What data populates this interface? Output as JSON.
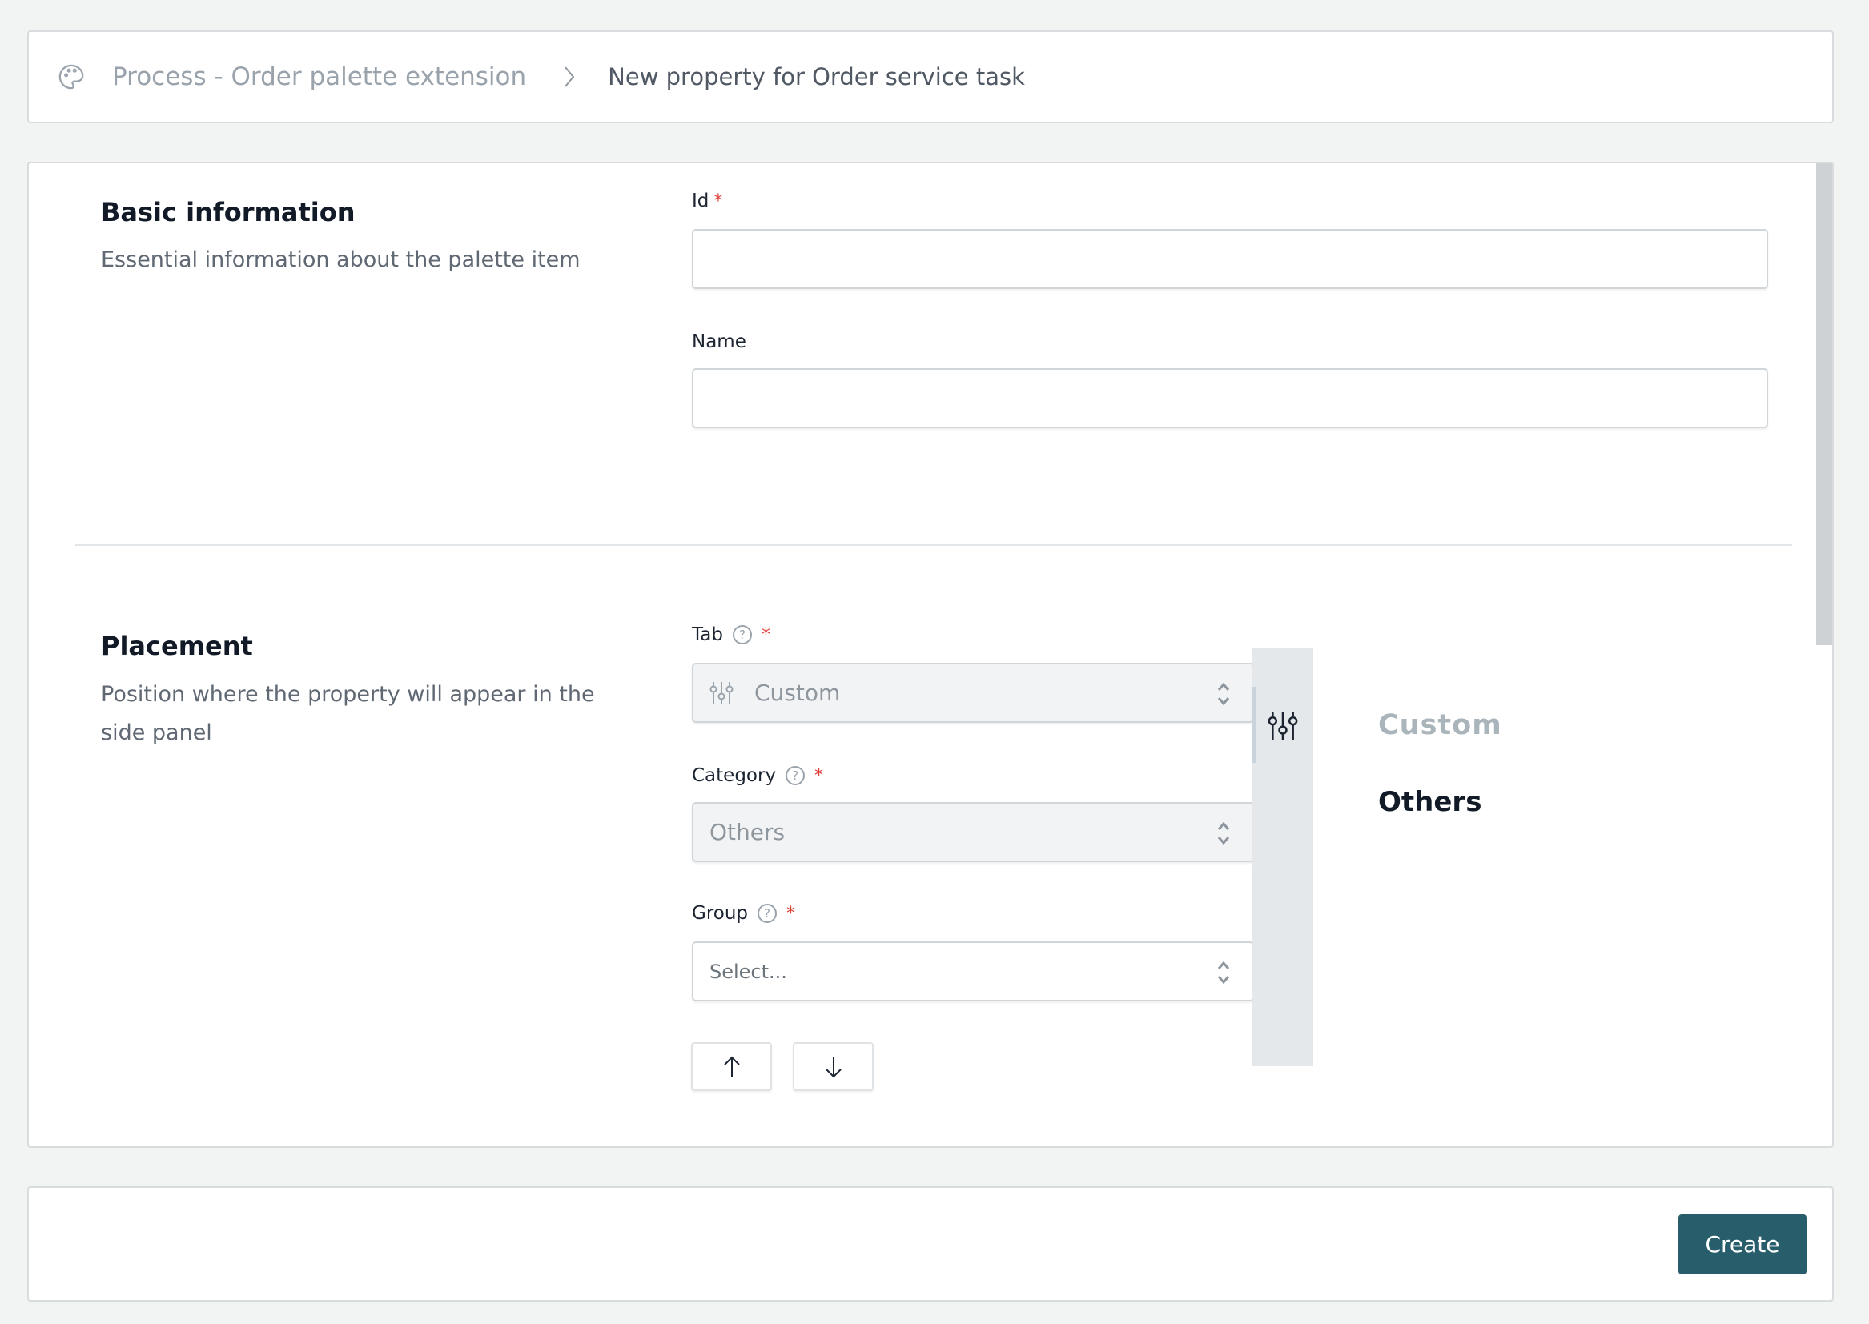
{
  "breadcrumb": {
    "icon": "palette-icon",
    "parent": "Process - Order palette extension",
    "separator_icon": "chevron-right-icon",
    "current": "New property for Order service task"
  },
  "basic": {
    "title": "Basic information",
    "description": "Essential information about the palette item",
    "id_label": "Id",
    "id_value": "",
    "name_label": "Name",
    "name_value": "",
    "required_mark": "*"
  },
  "placement": {
    "title": "Placement",
    "description": "Position where the property will appear in the side panel",
    "tab_label": "Tab",
    "tab_value": "Custom",
    "tab_icon": "sliders-icon",
    "category_label": "Category",
    "category_value": "Others",
    "group_label": "Group",
    "group_placeholder": "Select...",
    "move_up_icon": "arrow-up-icon",
    "move_down_icon": "arrow-down-icon",
    "preview": {
      "tab_icon": "sliders-icon",
      "tab_name": "Custom",
      "category_name": "Others"
    }
  },
  "footer": {
    "create_label": "Create",
    "accent": "#285d6b"
  }
}
